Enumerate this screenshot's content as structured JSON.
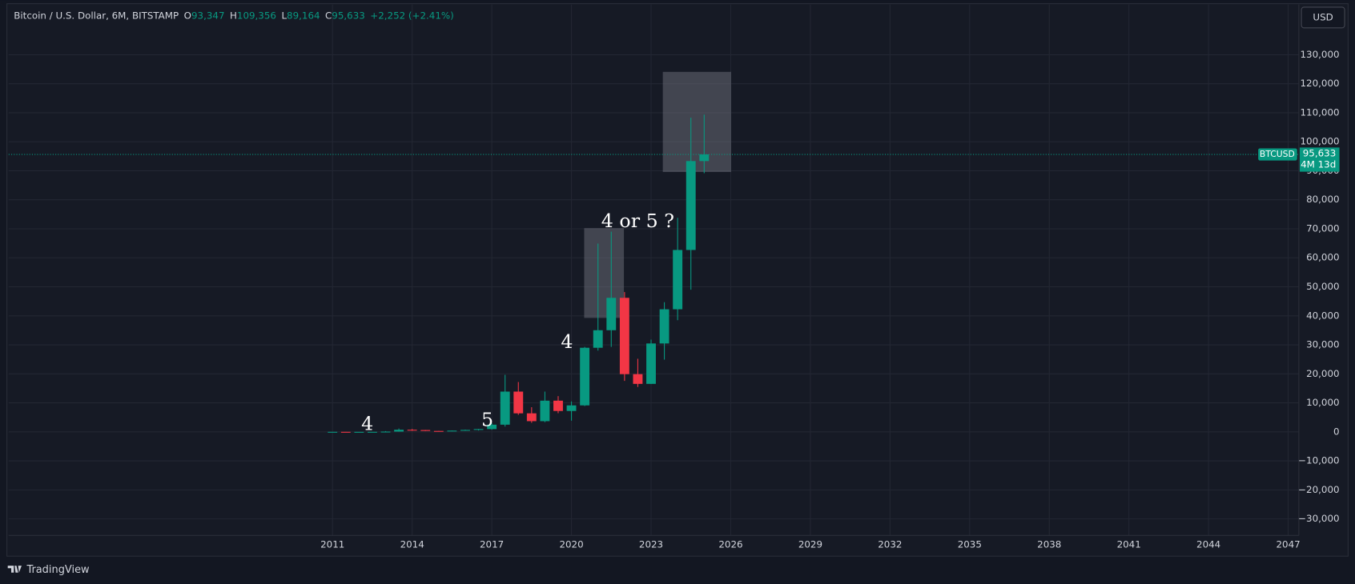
{
  "header": {
    "title": "Bitcoin / U.S. Dollar, 6M, BITSTAMP",
    "o_label": "O",
    "o": "93,347",
    "h_label": "H",
    "h": "109,356",
    "l_label": "L",
    "l": "89,164",
    "c_label": "C",
    "c": "95,633",
    "change": "+2,252 (+2.41%)"
  },
  "currency_button": "USD",
  "footer": "TradingView",
  "chart_data": {
    "type": "candlestick",
    "x": [
      2011.0,
      2011.5,
      2012.0,
      2012.5,
      2013.0,
      2013.5,
      2014.0,
      2014.5,
      2015.0,
      2015.5,
      2016.0,
      2016.5,
      2017.0,
      2017.5,
      2018.0,
      2018.5,
      2019.0,
      2019.5,
      2020.0,
      2020.5,
      2021.0,
      2021.5,
      2022.0,
      2022.5,
      2023.0,
      2023.5,
      2024.0,
      2024.5,
      2025.0
    ],
    "open": [
      0.3,
      16.1,
      4.7,
      6.7,
      13.5,
      97,
      732,
      636,
      320,
      264,
      430,
      675,
      963,
      2480,
      13880,
      6390,
      3690,
      10760,
      7200,
      9135,
      28990,
      35040,
      46200,
      19900,
      16540,
      30470,
      42260,
      62700,
      93347
    ],
    "high": [
      31.9,
      17,
      7.5,
      16,
      266,
      1163,
      1000,
      660,
      320,
      465,
      780,
      980,
      2980,
      19666,
      17176,
      8500,
      13880,
      12320,
      10500,
      29300,
      64900,
      69000,
      48190,
      25200,
      31800,
      44700,
      73800,
      108300,
      109356
    ],
    "low": [
      0.3,
      2,
      3.8,
      6.6,
      13,
      65,
      340,
      275,
      166,
      198,
      360,
      470,
      752,
      1830,
      5873,
      3122,
      3350,
      6430,
      3850,
      8900,
      28000,
      29300,
      17570,
      15480,
      16500,
      24900,
      38500,
      49000,
      89164
    ],
    "close": [
      16.1,
      4.7,
      6.7,
      13.5,
      97,
      732,
      636,
      320,
      264,
      430,
      675,
      963,
      2480,
      13880,
      6390,
      3690,
      10760,
      7200,
      9135,
      28990,
      35040,
      46200,
      19900,
      16540,
      30470,
      42260,
      62700,
      93350,
      95633
    ],
    "up_color": "#089981",
    "down_color": "#f23645",
    "xlim": [
      1998.8,
      2047.4
    ],
    "xticks": [
      2011,
      2014,
      2017,
      2020,
      2023,
      2026,
      2029,
      2032,
      2035,
      2038,
      2041,
      2044,
      2047
    ],
    "ylim": [
      -35700,
      147300
    ],
    "yticks": [
      {
        "value": -30000,
        "label": "−30,000"
      },
      {
        "value": -20000,
        "label": "−20,000"
      },
      {
        "value": -10000,
        "label": "−10,000"
      },
      0,
      {
        "value": 10000,
        "label": "10,000"
      },
      {
        "value": 20000,
        "label": "20,000"
      },
      {
        "value": 30000,
        "label": "30,000"
      },
      {
        "value": 40000,
        "label": "40,000"
      },
      {
        "value": 50000,
        "label": "50,000"
      },
      {
        "value": 60000,
        "label": "60,000"
      },
      {
        "value": 70000,
        "label": "70,000"
      },
      {
        "value": 80000,
        "label": "80,000"
      },
      {
        "value": 90000,
        "label": "90,000"
      },
      {
        "value": 100000,
        "label": "100,000"
      },
      {
        "value": 110000,
        "label": "110,000"
      },
      {
        "value": 120000,
        "label": "120,000"
      },
      {
        "value": 130000,
        "label": "130,000"
      }
    ],
    "grid": true,
    "price_tag": {
      "symbol": "BTCUSD",
      "price": "95,633",
      "countdown": "4M 13d"
    },
    "annotations": [
      "4",
      "5",
      "4",
      "4 or 5 ?"
    ]
  }
}
